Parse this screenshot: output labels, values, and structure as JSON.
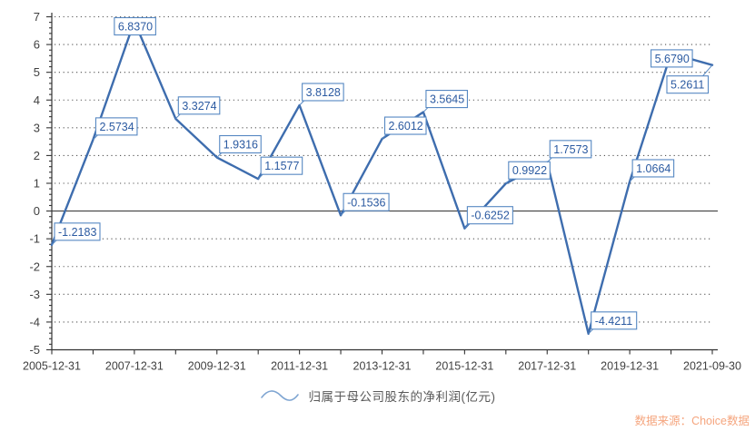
{
  "chart_data": {
    "type": "line",
    "title": "",
    "series": [
      {
        "name": "归属于母公司股东的净利润(亿元)",
        "values": [
          -1.2183,
          2.5734,
          6.837,
          3.3274,
          1.9316,
          1.1577,
          3.8128,
          -0.1536,
          2.6012,
          3.5645,
          -0.6252,
          0.9922,
          1.7573,
          -4.4211,
          1.0664,
          5.679,
          5.2611
        ],
        "data_labels": [
          "-1.2183",
          "2.5734",
          "6.8370",
          "3.3274",
          "1.9316",
          "1.1577",
          "3.8128",
          "-0.1536",
          "2.6012",
          "3.5645",
          "-0.6252",
          "0.9922",
          "1.7573",
          "-4.4211",
          "1.0664",
          "5.6790",
          "5.2611"
        ]
      }
    ],
    "x_tick_labels": [
      "2005-12-31",
      "2007-12-31",
      "2009-12-31",
      "2011-12-31",
      "2013-12-31",
      "2015-12-31",
      "2017-12-31",
      "2019-12-31",
      "2021-09-30"
    ],
    "x_tick_point_indices": [
      0,
      2,
      4,
      6,
      8,
      10,
      12,
      14,
      16
    ],
    "y_ticks": [
      -5,
      -4,
      -3,
      -2,
      -1,
      0,
      1,
      2,
      3,
      4,
      5,
      6,
      7
    ],
    "ylim": [
      -5,
      7
    ],
    "grid": "horizontal-dotted",
    "zero_line": true,
    "legend_position": "bottom-center",
    "colors": {
      "line": "#3E6DAE",
      "label_text": "#2B5AA1",
      "label_border": "#5587C2",
      "label_bg": "#FFFFFF",
      "axis": "#333333",
      "tick_text": "#3F3F3F",
      "grid_dot": "#555555",
      "zero_line": "#404040",
      "legend_icon": "#7FA5D2",
      "legend_text": "#595959",
      "source_text": "#F5A57E"
    }
  },
  "legend": {
    "label": "归属于母公司股东的净利润(亿元)"
  },
  "source": {
    "text": "数据来源：Choice数据"
  }
}
